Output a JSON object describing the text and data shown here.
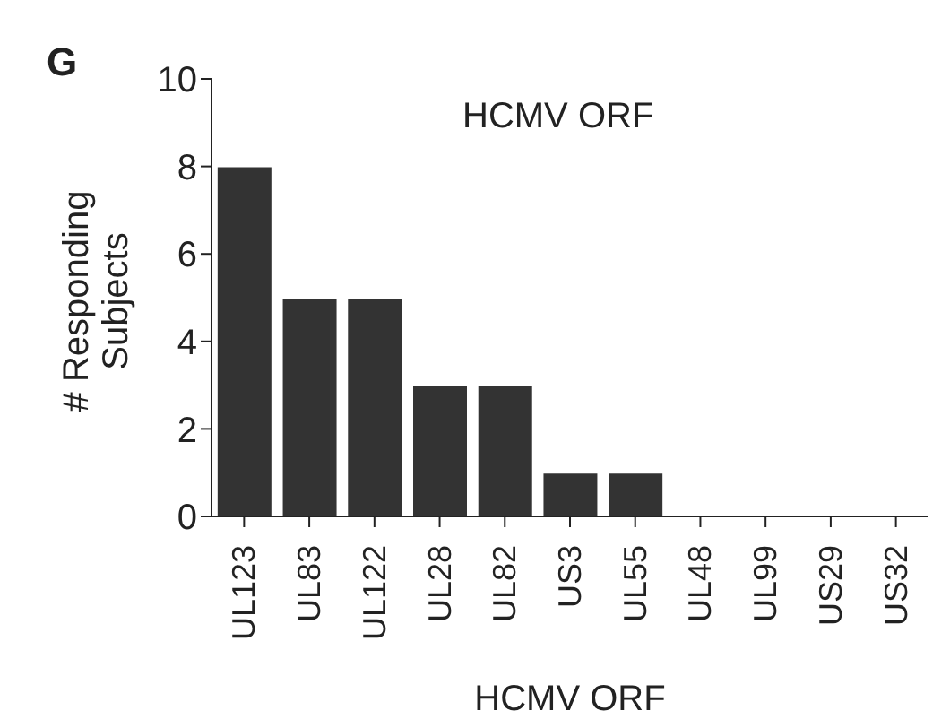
{
  "chart_data": {
    "type": "bar",
    "xlabel": "HCMV ORF",
    "ylabel": "# Responding\nSubjects",
    "categories": [
      "UL123",
      "UL83",
      "UL122",
      "UL28",
      "UL82",
      "US3",
      "UL55",
      "UL48",
      "UL99",
      "US29",
      "US32"
    ],
    "values": [
      8,
      5,
      5,
      3,
      3,
      1,
      1,
      0,
      0,
      0,
      0
    ],
    "color": "#333333",
    "ylim": [
      0,
      10
    ],
    "yticks": [
      0,
      2,
      4,
      6,
      8,
      10
    ],
    "annotations": [
      "G",
      "HCMV ORF"
    ]
  }
}
